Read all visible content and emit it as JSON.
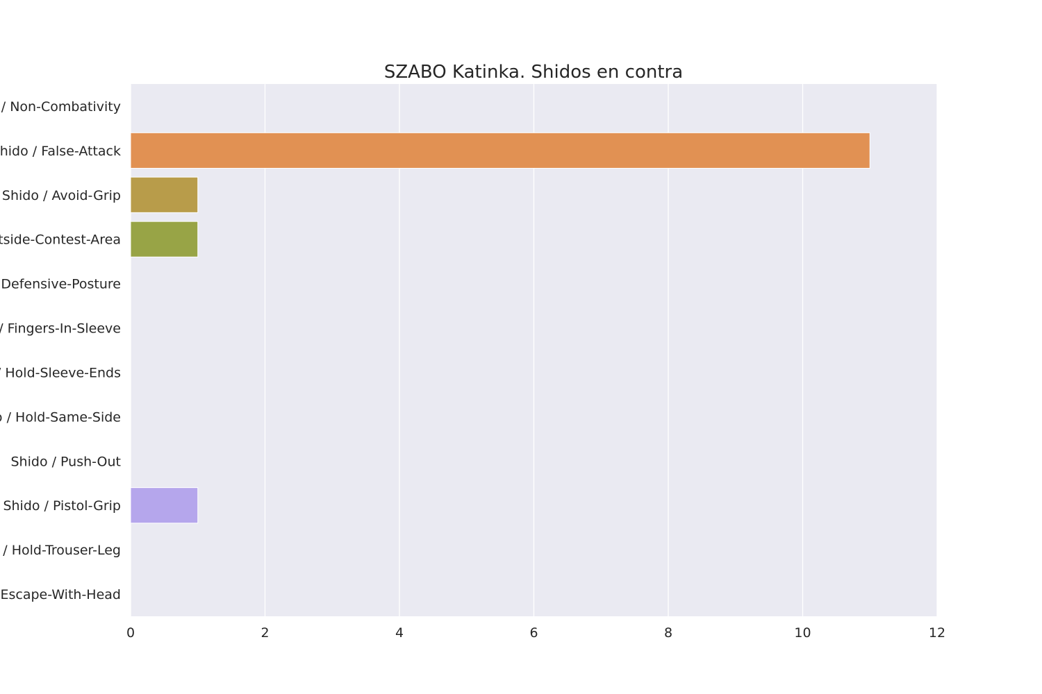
{
  "chart_data": {
    "type": "bar",
    "orientation": "horizontal",
    "title": "SZABO Katinka. Shidos en contra",
    "xlabel": "",
    "ylabel": "",
    "xlim": [
      0,
      12
    ],
    "x_ticks": [
      0,
      2,
      4,
      6,
      8,
      10,
      12
    ],
    "grid": true,
    "categories": [
      "Shido / Non-Combativity",
      "Shido / False-Attack",
      "Shido / Avoid-Grip",
      "Shido / Outside-Contest-Area",
      "Shido / Defensive-Posture",
      "Shido / Fingers-In-Sleeve",
      "Shido / Hold-Sleeve-Ends",
      "Shido / Hold-Same-Side",
      "Shido / Push-Out",
      "Shido / Pistol-Grip",
      "Shido / Hold-Trouser-Leg",
      "Shido / Escape-With-Head"
    ],
    "values": [
      0,
      11,
      1,
      1,
      0,
      0,
      0,
      0,
      0,
      1,
      0,
      0
    ],
    "colors": [
      "#e1828c",
      "#e19153",
      "#b89c4a",
      "#98a446",
      "#5ead5b",
      "#4fae8e",
      "#4fa9a6",
      "#54a4bd",
      "#5a9bd8",
      "#b5a6ec",
      "#d98fd9",
      "#e682bd"
    ],
    "background": "#eaeaf2",
    "grid_color": "#ffffff"
  }
}
